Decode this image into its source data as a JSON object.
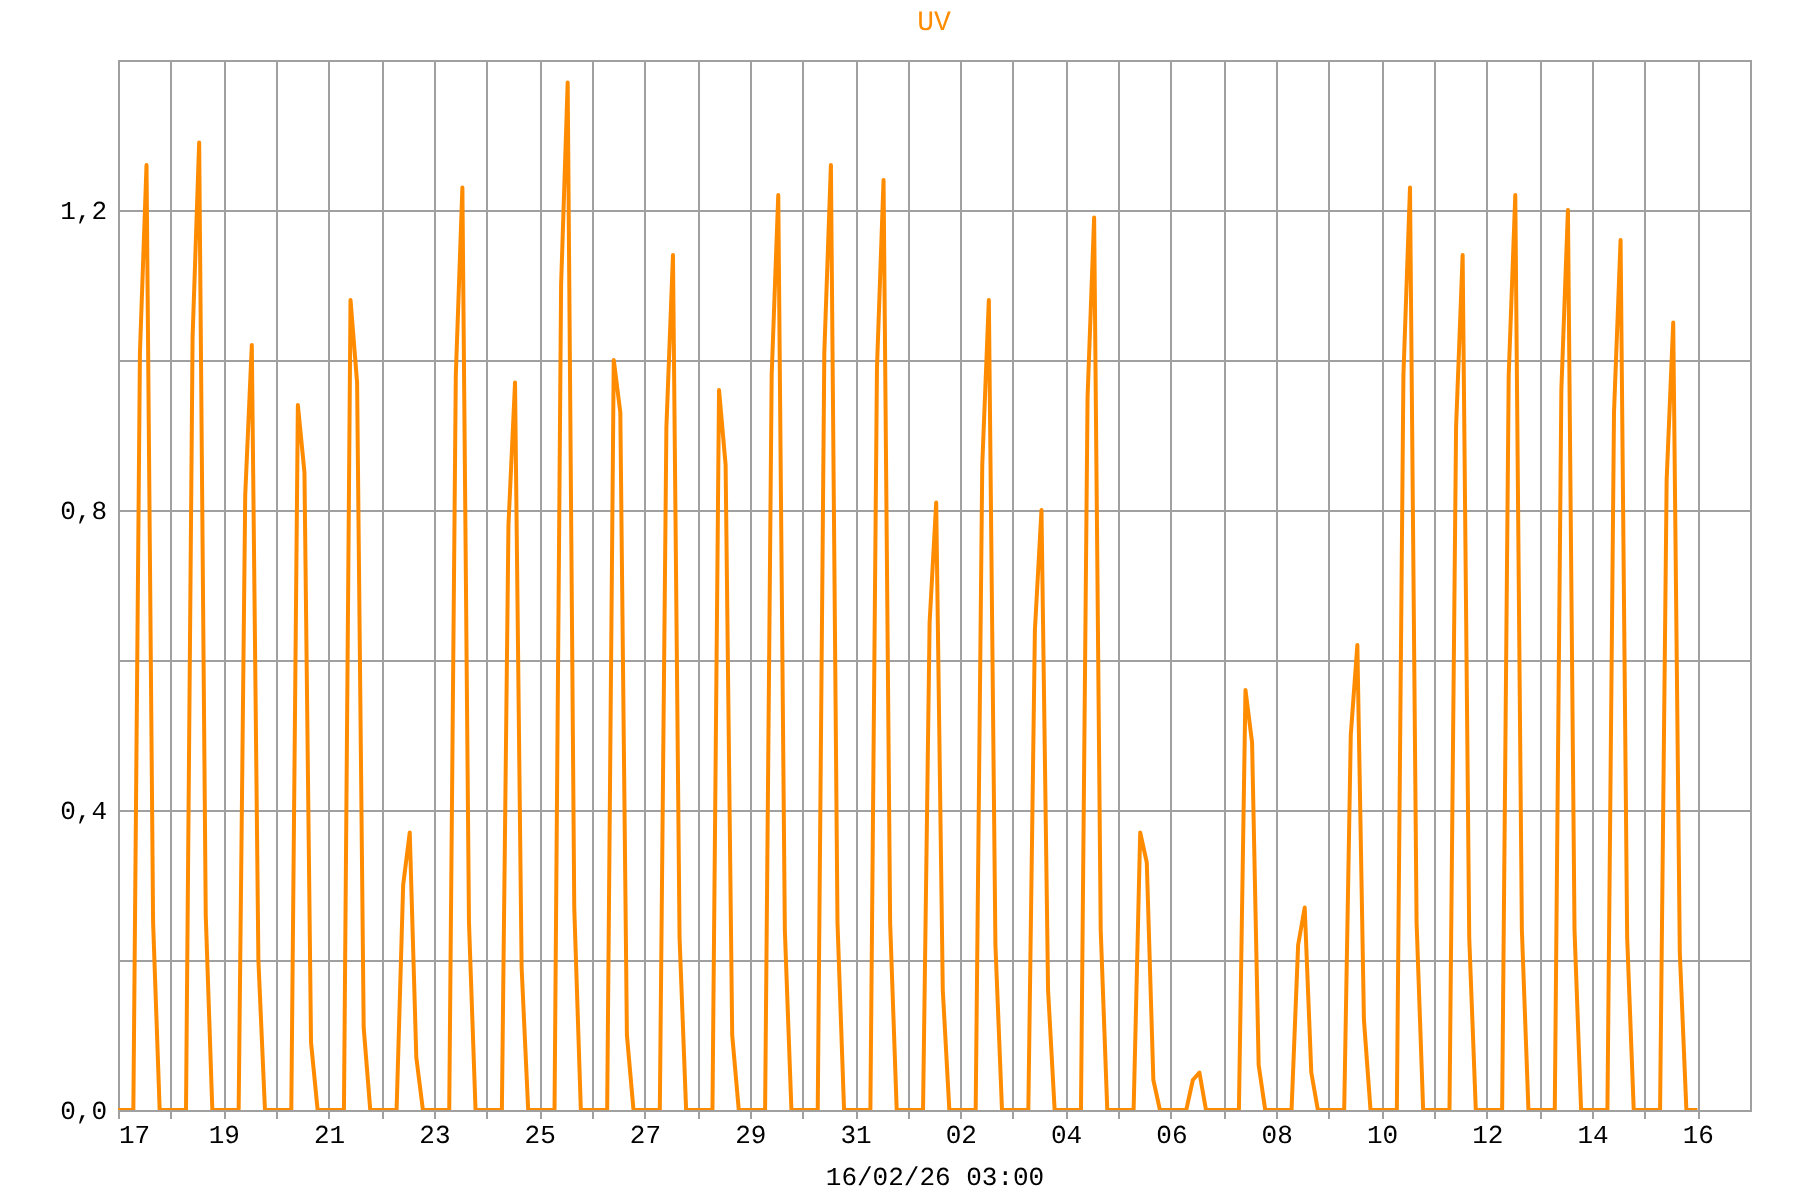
{
  "chart_data": {
    "type": "line",
    "title": "UV",
    "xlabel": "16/02/26 03:00",
    "color": "#ff8c00",
    "grid": true,
    "xlim": [
      "--01-17T00:00",
      "--02-17T00:00"
    ],
    "ylim": [
      0,
      1.4
    ],
    "yticks": [
      {
        "value": 0,
        "label": "0,0"
      },
      {
        "value": 0.2,
        "label": null
      },
      {
        "value": 0.4,
        "label": "0,4"
      },
      {
        "value": 0.6,
        "label": null
      },
      {
        "value": 0.8,
        "label": "0,8"
      },
      {
        "value": 1.0,
        "label": null
      },
      {
        "value": 1.2,
        "label": "1,2"
      }
    ],
    "xticks": [
      {
        "value": "--01-17T00:00",
        "label": "17"
      },
      {
        "value": "--01-18T00:00",
        "label": null
      },
      {
        "value": "--01-19T00:00",
        "label": "19"
      },
      {
        "value": "--01-20T00:00",
        "label": null
      },
      {
        "value": "--01-21T00:00",
        "label": "21"
      },
      {
        "value": "--01-22T00:00",
        "label": null
      },
      {
        "value": "--01-23T00:00",
        "label": "23"
      },
      {
        "value": "--01-24T00:00",
        "label": null
      },
      {
        "value": "--01-25T00:00",
        "label": "25"
      },
      {
        "value": "--01-26T00:00",
        "label": null
      },
      {
        "value": "--01-27T00:00",
        "label": "27"
      },
      {
        "value": "--01-28T00:00",
        "label": null
      },
      {
        "value": "--01-29T00:00",
        "label": "29"
      },
      {
        "value": "--01-30T00:00",
        "label": null
      },
      {
        "value": "--01-31T00:00",
        "label": "31"
      },
      {
        "value": "--02-01T00:00",
        "label": null
      },
      {
        "value": "--02-02T00:00",
        "label": "02"
      },
      {
        "value": "--02-03T00:00",
        "label": null
      },
      {
        "value": "--02-04T00:00",
        "label": "04"
      },
      {
        "value": "--02-05T00:00",
        "label": null
      },
      {
        "value": "--02-06T00:00",
        "label": "06"
      },
      {
        "value": "--02-07T00:00",
        "label": null
      },
      {
        "value": "--02-08T00:00",
        "label": "08"
      },
      {
        "value": "--02-09T00:00",
        "label": null
      },
      {
        "value": "--02-10T00:00",
        "label": "10"
      },
      {
        "value": "--02-11T00:00",
        "label": null
      },
      {
        "value": "--02-12T00:00",
        "label": "12"
      },
      {
        "value": "--02-13T00:00",
        "label": null
      },
      {
        "value": "--02-14T00:00",
        "label": "14"
      },
      {
        "value": "--02-15T00:00",
        "label": null
      },
      {
        "value": "--02-16T00:00",
        "label": "16"
      }
    ],
    "x": [
      "--01-17T00:00",
      "--01-17T07:00",
      "--01-17T10:00",
      "--01-17T13:00",
      "--01-17T16:00",
      "--01-17T19:00",
      "--01-18T07:00",
      "--01-18T10:00",
      "--01-18T13:00",
      "--01-18T16:00",
      "--01-18T19:00",
      "--01-19T07:00",
      "--01-19T10:00",
      "--01-19T13:00",
      "--01-19T16:00",
      "--01-19T19:00",
      "--01-20T07:00",
      "--01-20T10:00",
      "--01-20T13:00",
      "--01-20T16:00",
      "--01-20T19:00",
      "--01-21T07:00",
      "--01-21T10:00",
      "--01-21T13:00",
      "--01-21T16:00",
      "--01-21T19:00",
      "--01-22T07:00",
      "--01-22T10:00",
      "--01-22T13:00",
      "--01-22T16:00",
      "--01-22T19:00",
      "--01-23T07:00",
      "--01-23T10:00",
      "--01-23T13:00",
      "--01-23T16:00",
      "--01-23T19:00",
      "--01-24T07:00",
      "--01-24T10:00",
      "--01-24T13:00",
      "--01-24T16:00",
      "--01-24T19:00",
      "--01-25T07:00",
      "--01-25T10:00",
      "--01-25T13:00",
      "--01-25T16:00",
      "--01-25T19:00",
      "--01-26T07:00",
      "--01-26T10:00",
      "--01-26T13:00",
      "--01-26T16:00",
      "--01-26T19:00",
      "--01-27T07:00",
      "--01-27T10:00",
      "--01-27T13:00",
      "--01-27T16:00",
      "--01-27T19:00",
      "--01-28T07:00",
      "--01-28T10:00",
      "--01-28T13:00",
      "--01-28T16:00",
      "--01-28T19:00",
      "--01-29T07:00",
      "--01-29T10:00",
      "--01-29T13:00",
      "--01-29T16:00",
      "--01-29T19:00",
      "--01-30T07:00",
      "--01-30T10:00",
      "--01-30T13:00",
      "--01-30T16:00",
      "--01-30T19:00",
      "--01-31T07:00",
      "--01-31T10:00",
      "--01-31T13:00",
      "--01-31T16:00",
      "--01-31T19:00",
      "--02-01T07:00",
      "--02-01T10:00",
      "--02-01T13:00",
      "--02-01T16:00",
      "--02-01T19:00",
      "--02-02T07:00",
      "--02-02T10:00",
      "--02-02T13:00",
      "--02-02T16:00",
      "--02-02T19:00",
      "--02-03T07:00",
      "--02-03T10:00",
      "--02-03T13:00",
      "--02-03T16:00",
      "--02-03T19:00",
      "--02-04T07:00",
      "--02-04T10:00",
      "--02-04T13:00",
      "--02-04T16:00",
      "--02-04T19:00",
      "--02-05T07:00",
      "--02-05T10:00",
      "--02-05T13:00",
      "--02-05T16:00",
      "--02-05T19:00",
      "--02-06T07:00",
      "--02-06T10:00",
      "--02-06T13:00",
      "--02-06T16:00",
      "--02-06T19:00",
      "--02-07T07:00",
      "--02-07T10:00",
      "--02-07T13:00",
      "--02-07T16:00",
      "--02-07T19:00",
      "--02-08T07:00",
      "--02-08T10:00",
      "--02-08T13:00",
      "--02-08T16:00",
      "--02-08T19:00",
      "--02-09T07:00",
      "--02-09T10:00",
      "--02-09T13:00",
      "--02-09T16:00",
      "--02-09T19:00",
      "--02-10T07:00",
      "--02-10T10:00",
      "--02-10T13:00",
      "--02-10T16:00",
      "--02-10T19:00",
      "--02-11T07:00",
      "--02-11T10:00",
      "--02-11T13:00",
      "--02-11T16:00",
      "--02-11T19:00",
      "--02-12T07:00",
      "--02-12T10:00",
      "--02-12T13:00",
      "--02-12T16:00",
      "--02-12T19:00",
      "--02-13T07:00",
      "--02-13T10:00",
      "--02-13T13:00",
      "--02-13T16:00",
      "--02-13T19:00",
      "--02-14T07:00",
      "--02-14T10:00",
      "--02-14T13:00",
      "--02-14T16:00",
      "--02-14T19:00",
      "--02-15T07:00",
      "--02-15T10:00",
      "--02-15T13:00",
      "--02-15T16:00",
      "--02-15T19:00",
      "--02-16T00:00"
    ],
    "values": [
      0,
      0,
      1.01,
      1.26,
      0.25,
      0,
      0,
      1.03,
      1.29,
      0.26,
      0,
      0,
      0.82,
      1.02,
      0.2,
      0,
      0,
      0.94,
      0.85,
      0.09,
      0,
      0,
      1.08,
      0.97,
      0.11,
      0,
      0,
      0.3,
      0.37,
      0.07,
      0,
      0,
      0.98,
      1.23,
      0.25,
      0,
      0,
      0.78,
      0.97,
      0.19,
      0,
      0,
      1.1,
      1.37,
      0.27,
      0,
      0,
      1.0,
      0.93,
      0.1,
      0,
      0,
      0.91,
      1.14,
      0.23,
      0,
      0,
      0.96,
      0.86,
      0.1,
      0,
      0,
      0.98,
      1.22,
      0.24,
      0,
      0,
      1.01,
      1.26,
      0.25,
      0,
      0,
      0.99,
      1.24,
      0.25,
      0,
      0,
      0.65,
      0.81,
      0.16,
      0,
      0,
      0.86,
      1.08,
      0.22,
      0,
      0,
      0.64,
      0.8,
      0.16,
      0,
      0,
      0.95,
      1.19,
      0.24,
      0,
      0,
      0.37,
      0.33,
      0.04,
      0,
      0,
      0.04,
      0.05,
      0,
      0,
      0,
      0.56,
      0.49,
      0.06,
      0,
      0,
      0.22,
      0.27,
      0.05,
      0,
      0,
      0.5,
      0.62,
      0.12,
      0,
      0,
      0.98,
      1.23,
      0.25,
      0,
      0,
      0.91,
      1.14,
      0.23,
      0,
      0,
      0.98,
      1.22,
      0.24,
      0,
      0,
      0.96,
      1.2,
      0.24,
      0,
      0,
      0.93,
      1.16,
      0.23,
      0,
      0,
      0.84,
      1.05,
      0.21,
      0,
      0
    ]
  }
}
